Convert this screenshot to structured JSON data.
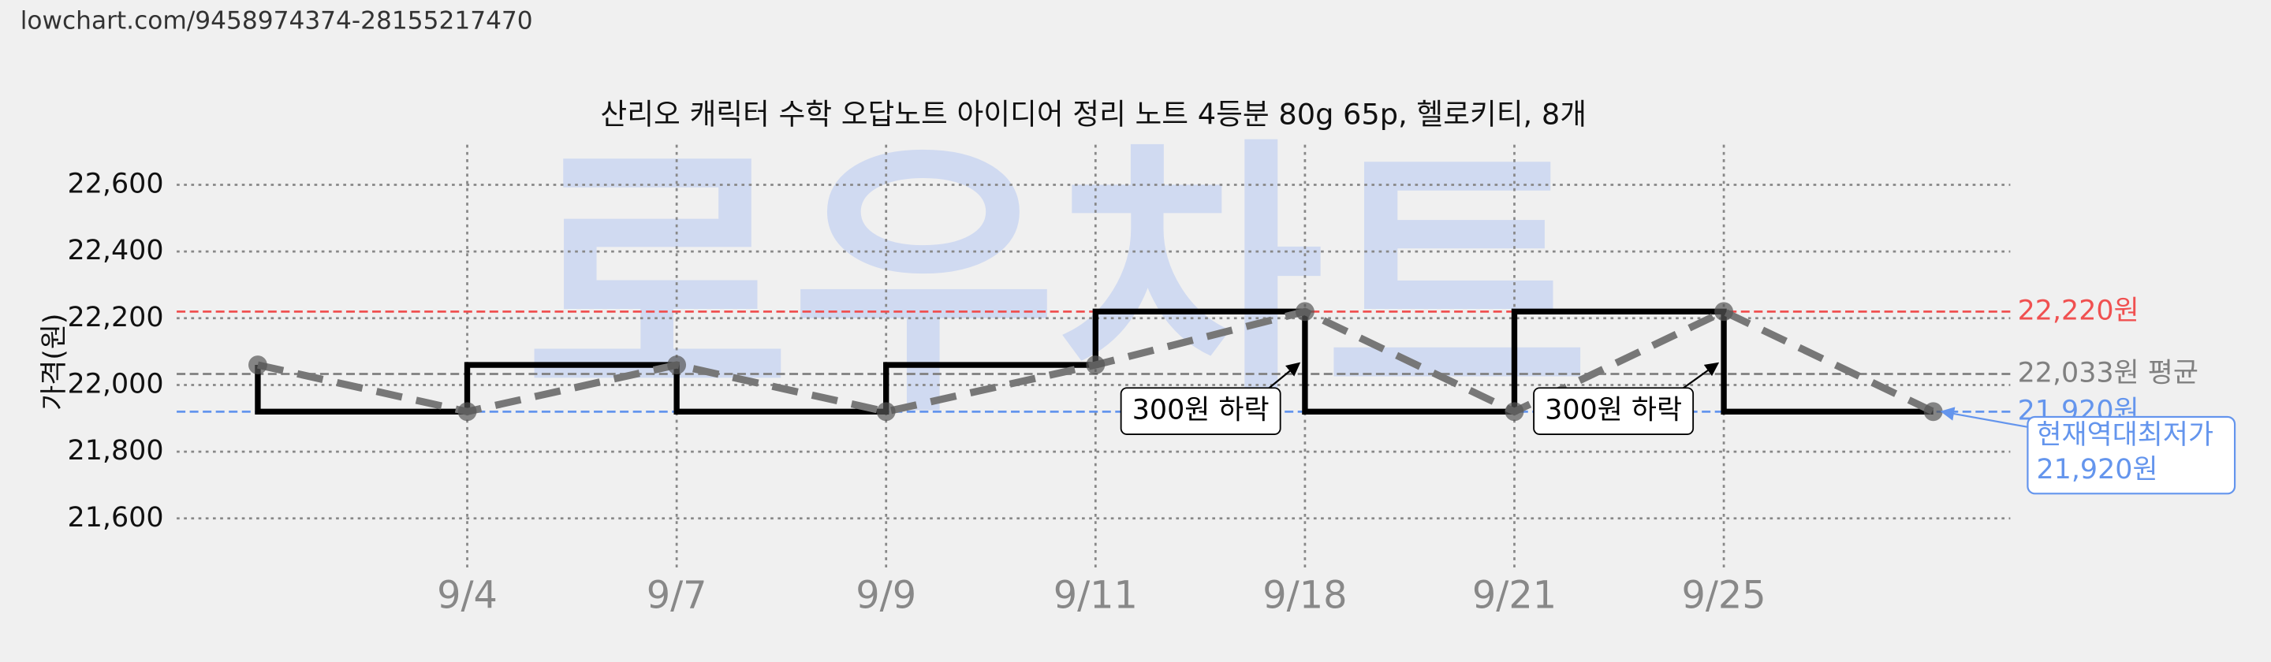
{
  "url": "lowchart.com/9458974374-28155217470",
  "chart_data": {
    "type": "line",
    "watermark": "로우차트",
    "title": "산리오 캐릭터 수학 오답노트 아이디어 정리 노트 4등분 80g 65p, 헬로키티, 8개",
    "y_label": "가격(원)",
    "x": [
      null,
      "9/4",
      "9/7",
      "9/9",
      "9/11",
      "9/18",
      "9/21",
      "9/25",
      null
    ],
    "values": [
      22060,
      21920,
      22060,
      21920,
      22060,
      22220,
      21920,
      22220,
      21920
    ],
    "line_color": "#777777",
    "step_color": "#000000",
    "ylim": [
      21440,
      22720
    ],
    "yticks": [
      {
        "value": 21600,
        "label": "21,600"
      },
      {
        "value": 21800,
        "label": "21,800"
      },
      {
        "value": 22000,
        "label": "22,000"
      },
      {
        "value": 22200,
        "label": "22,200"
      },
      {
        "value": 22400,
        "label": "22,400"
      },
      {
        "value": 22600,
        "label": "22,600"
      }
    ],
    "grid": true,
    "reference_lines": [
      {
        "value": 22220,
        "label": "22,220원",
        "color": "#f05050"
      },
      {
        "value": 22033,
        "label": "22,033원 평균",
        "color": "#808080"
      },
      {
        "value": 21920,
        "label": "21,920원",
        "color": "#6495ed"
      }
    ],
    "annotations": [
      "300원 하락",
      "300원 하락"
    ],
    "callout": [
      "현재역대최저가",
      "21,920원"
    ]
  }
}
